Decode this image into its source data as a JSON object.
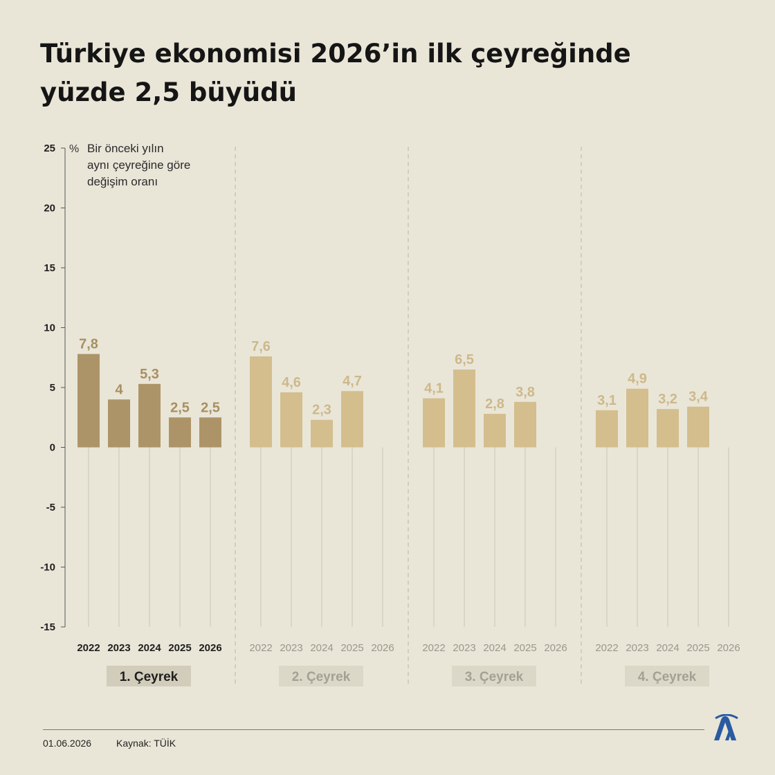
{
  "title": {
    "line1": "Türkiye ekonomisi 2026’in ilk çeyreğinde",
    "line2": "yüzde 2,5 büyüdü"
  },
  "chart_data": {
    "type": "bar",
    "unit_symbol": "%",
    "note_lines": [
      "Bir önceki yılın",
      "aynı çeyreğine göre",
      "değişim oranı"
    ],
    "ylim": [
      -15,
      25
    ],
    "yticks": [
      25,
      20,
      15,
      10,
      5,
      0,
      -5,
      -10,
      -15
    ],
    "grid": false,
    "groups": [
      {
        "name": "1. Çeyrek",
        "highlight": true,
        "years": [
          "2022",
          "2023",
          "2024",
          "2025",
          "2026"
        ],
        "values": [
          7.8,
          4,
          5.3,
          2.5,
          2.5
        ],
        "labels": [
          "7,8",
          "4",
          "5,3",
          "2,5",
          "2,5"
        ]
      },
      {
        "name": "2. Çeyrek",
        "highlight": false,
        "years": [
          "2022",
          "2023",
          "2024",
          "2025",
          "2026"
        ],
        "values": [
          7.6,
          4.6,
          2.3,
          4.7,
          null
        ],
        "labels": [
          "7,6",
          "4,6",
          "2,3",
          "4,7",
          ""
        ]
      },
      {
        "name": "3. Çeyrek",
        "highlight": false,
        "years": [
          "2022",
          "2023",
          "2024",
          "2025",
          "2026"
        ],
        "values": [
          4.1,
          6.5,
          2.8,
          3.8,
          null
        ],
        "labels": [
          "4,1",
          "6,5",
          "2,8",
          "3,8",
          ""
        ]
      },
      {
        "name": "4. Çeyrek",
        "highlight": false,
        "years": [
          "2022",
          "2023",
          "2024",
          "2025",
          "2026"
        ],
        "values": [
          3.1,
          4.9,
          3.2,
          3.4,
          null
        ],
        "labels": [
          "3,1",
          "4,9",
          "3,2",
          "3,4",
          ""
        ]
      }
    ]
  },
  "colors": {
    "background": "#e9e6d8",
    "bar_highlight": "#ad9468",
    "bar_muted": "#d4be8e",
    "label_highlight": "#a88f60",
    "label_muted": "#cdb88a",
    "badge_highlight": "#d2cdbb",
    "badge_muted": "#dcd8c8"
  },
  "footer": {
    "date": "01.06.2026",
    "source": "Kaynak: TÜİK"
  },
  "logo_icon": "aa-logo-icon"
}
